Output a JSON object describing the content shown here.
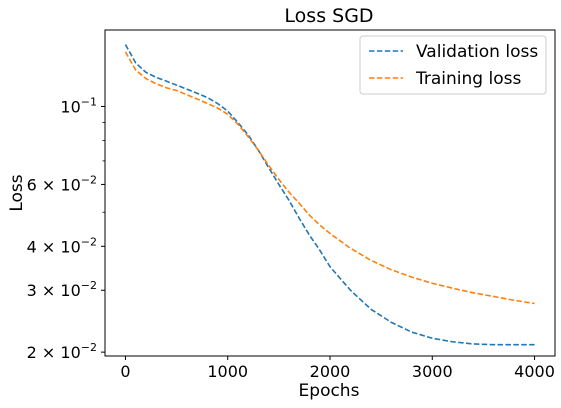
{
  "chart_data": {
    "type": "line",
    "title": "Loss SGD",
    "xlabel": "Epochs",
    "ylabel": "Loss",
    "x_scale": "linear",
    "y_scale": "log",
    "xlim": [
      -200,
      4200
    ],
    "ylim": [
      0.0195,
      0.165
    ],
    "x_ticks": [
      {
        "value": 0,
        "label": "0"
      },
      {
        "value": 1000,
        "label": "1000"
      },
      {
        "value": 2000,
        "label": "2000"
      },
      {
        "value": 3000,
        "label": "3000"
      },
      {
        "value": 4000,
        "label": "4000"
      }
    ],
    "y_ticks": [
      {
        "value": 0.1,
        "mantissa": "10",
        "exponent": "−1"
      },
      {
        "value": 0.06,
        "mantissa": "6 × 10",
        "exponent": "−2"
      },
      {
        "value": 0.04,
        "mantissa": "4 × 10",
        "exponent": "−2"
      },
      {
        "value": 0.03,
        "mantissa": "3 × 10",
        "exponent": "−2"
      },
      {
        "value": 0.02,
        "mantissa": "2 × 10",
        "exponent": "−2"
      }
    ],
    "y_minor_ticks": [
      0.05,
      0.07,
      0.08,
      0.09
    ],
    "grid": false,
    "legend": "top-right",
    "series": [
      {
        "name": "Validation loss",
        "color": "#1f77b4",
        "style": "dashed",
        "x": [
          0,
          100,
          200,
          300,
          400,
          500,
          600,
          700,
          800,
          900,
          1000,
          1100,
          1200,
          1300,
          1400,
          1500,
          1600,
          1700,
          1800,
          1900,
          2000,
          2200,
          2400,
          2600,
          2800,
          3000,
          3200,
          3400,
          3600,
          3800,
          4000
        ],
        "y": [
          0.15,
          0.133,
          0.125,
          0.121,
          0.118,
          0.115,
          0.112,
          0.109,
          0.106,
          0.102,
          0.097,
          0.09,
          0.083,
          0.075,
          0.067,
          0.06,
          0.054,
          0.048,
          0.043,
          0.039,
          0.035,
          0.03,
          0.0265,
          0.0243,
          0.0228,
          0.0219,
          0.0214,
          0.0211,
          0.021,
          0.021,
          0.021
        ]
      },
      {
        "name": "Training loss",
        "color": "#ff7f0e",
        "style": "dashed",
        "x": [
          0,
          100,
          200,
          300,
          400,
          500,
          600,
          700,
          800,
          900,
          1000,
          1100,
          1200,
          1300,
          1400,
          1500,
          1600,
          1700,
          1800,
          1900,
          2000,
          2200,
          2400,
          2600,
          2800,
          3000,
          3200,
          3400,
          3600,
          3800,
          4000
        ],
        "y": [
          0.143,
          0.127,
          0.12,
          0.116,
          0.113,
          0.111,
          0.108,
          0.105,
          0.102,
          0.099,
          0.095,
          0.089,
          0.082,
          0.075,
          0.068,
          0.062,
          0.057,
          0.053,
          0.049,
          0.046,
          0.0435,
          0.0395,
          0.0365,
          0.0343,
          0.0327,
          0.0314,
          0.0304,
          0.0295,
          0.0288,
          0.0281,
          0.0275
        ]
      }
    ]
  }
}
